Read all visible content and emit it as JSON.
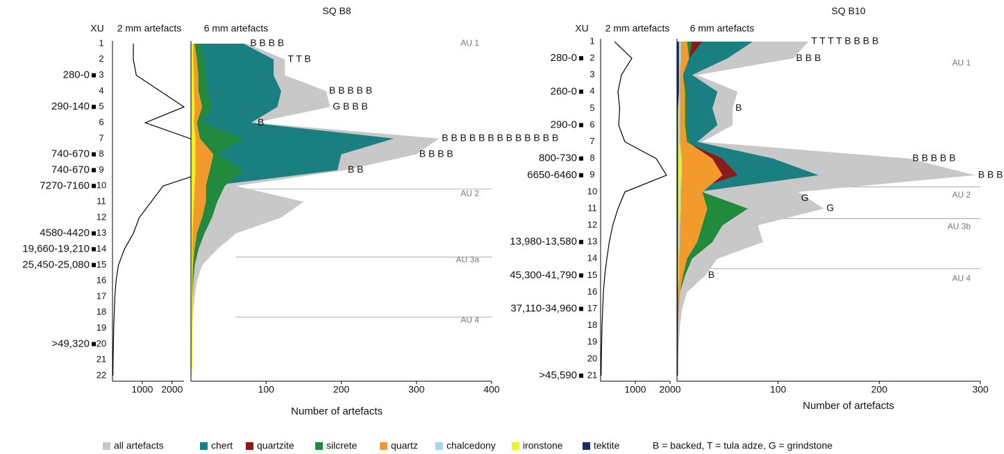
{
  "figure": {
    "legend_note": "B = backed, T = tula adze, G = grindstone",
    "materials": [
      {
        "key": "all",
        "label": "all artefacts",
        "color": "#c8c8c8"
      },
      {
        "key": "chert",
        "label": "chert",
        "color": "#1f6b65"
      },
      {
        "key": "quartzite",
        "label": "quartzite",
        "color": "#8b1a1a"
      },
      {
        "key": "silcrete",
        "label": "silcrete",
        "color": "#218a3c"
      },
      {
        "key": "quartz",
        "label": "quartz",
        "color": "#f39a2c"
      },
      {
        "key": "chalcedony",
        "label": "chalcedony",
        "color": "#a5d8ea"
      },
      {
        "key": "ironstone",
        "label": "ironstone",
        "color": "#eef21e"
      },
      {
        "key": "tektite",
        "label": "tektite",
        "color": "#1c2b6e"
      }
    ],
    "teal_color": "#1a7f80"
  },
  "chart_data": [
    {
      "type": "area",
      "title": "SQ B8",
      "y_axis_title": "XU",
      "fine_title": "2 mm artefacts",
      "coarse_title": "6 mm artefacts",
      "xlabel": "Number of artefacts",
      "xlim": [
        0,
        400
      ],
      "xticks": [
        100,
        200,
        300,
        400
      ],
      "fine_xlim": [
        0,
        2400
      ],
      "fine_xticks": [
        1000,
        2000
      ],
      "xu": [
        1,
        2,
        3,
        4,
        5,
        6,
        7,
        8,
        9,
        10,
        11,
        12,
        13,
        14,
        15,
        16,
        17,
        18,
        19,
        20,
        21,
        22
      ],
      "dates": [
        {
          "xu": 3,
          "label": "280-0"
        },
        {
          "xu": 5,
          "label": "290-140"
        },
        {
          "xu": 8,
          "label": "740-670"
        },
        {
          "xu": 9,
          "label": "740-670"
        },
        {
          "xu": 10,
          "label": "7270-7160"
        },
        {
          "xu": 13,
          "label": "4580-4420"
        },
        {
          "xu": 14,
          "label": "19,660-19,210"
        },
        {
          "xu": 15,
          "label": "25,450-25,080"
        },
        {
          "xu": 20,
          "label": ">49,320"
        }
      ],
      "fine": [
        700,
        700,
        800,
        1600,
        2400,
        1100,
        2600,
        3200,
        3300,
        1700,
        1300,
        900,
        700,
        400,
        200,
        120,
        80,
        60,
        40,
        30,
        20,
        15
      ],
      "series": {
        "all": [
          75,
          125,
          125,
          180,
          185,
          85,
          330,
          300,
          205,
          60,
          150,
          120,
          60,
          35,
          15,
          8,
          5,
          3,
          2,
          2,
          1,
          1
        ],
        "chert": [
          70,
          110,
          110,
          120,
          115,
          80,
          270,
          200,
          195,
          25,
          28,
          25,
          15,
          8,
          3,
          2,
          1,
          1,
          0,
          0,
          0,
          0
        ],
        "quartzite": [
          8,
          12,
          15,
          12,
          18,
          12,
          10,
          25,
          28,
          20,
          20,
          20,
          15,
          10,
          5,
          3,
          2,
          1,
          1,
          0,
          0,
          0
        ],
        "silcrete": [
          12,
          18,
          20,
          22,
          28,
          15,
          70,
          35,
          70,
          45,
          35,
          28,
          18,
          10,
          5,
          3,
          2,
          1,
          1,
          0,
          0,
          0
        ],
        "quartz": [
          5,
          8,
          10,
          10,
          15,
          8,
          12,
          30,
          25,
          20,
          20,
          15,
          8,
          5,
          3,
          2,
          1,
          1,
          1,
          0,
          0,
          0
        ],
        "chalcedony": [
          2,
          2,
          3,
          3,
          3,
          2,
          3,
          4,
          4,
          3,
          2,
          2,
          1,
          1,
          1,
          0,
          0,
          0,
          0,
          0,
          0,
          0
        ],
        "ironstone": [
          3,
          3,
          4,
          4,
          5,
          4,
          6,
          6,
          6,
          5,
          4,
          3,
          2,
          2,
          2,
          2,
          2,
          2,
          2,
          2,
          2,
          1
        ],
        "tektite": [
          0,
          0,
          0,
          0,
          0,
          0,
          0,
          0,
          0,
          0,
          0,
          0,
          0,
          0,
          0,
          0,
          0,
          0,
          0,
          0,
          0,
          0
        ]
      },
      "units": [
        {
          "label": "AU 1",
          "xu": 1
        },
        {
          "label": "AU 2",
          "xu": 10.5
        },
        {
          "label": "AU 3a",
          "xu": 14.7
        },
        {
          "label": "AU 4",
          "xu": 18.5
        }
      ],
      "boundaries": [
        10.2,
        14.5,
        18.3
      ],
      "annotations": [
        {
          "xu": 1,
          "text": "B B B B"
        },
        {
          "xu": 2,
          "text": "T T B"
        },
        {
          "xu": 4,
          "text": "B B B B B"
        },
        {
          "xu": 5,
          "text": "G B B B"
        },
        {
          "xu": 6,
          "text": "B"
        },
        {
          "xu": 7,
          "text": "B B B B B B B B B B B B B"
        },
        {
          "xu": 8,
          "text": "B B B B"
        },
        {
          "xu": 9,
          "text": "B B"
        }
      ]
    },
    {
      "type": "area",
      "title": "SQ B10",
      "y_axis_title": "XU",
      "fine_title": "2 mm artefacts",
      "coarse_title": "6 mm artefacts",
      "xlabel": "Number of artefacts",
      "xlim": [
        0,
        300
      ],
      "xticks": [
        100,
        200,
        300
      ],
      "fine_xlim": [
        0,
        2000
      ],
      "fine_xticks": [
        1000,
        2000
      ],
      "xu": [
        1,
        2,
        3,
        4,
        5,
        6,
        7,
        8,
        9,
        10,
        11,
        12,
        13,
        14,
        15,
        16,
        17,
        18,
        19,
        20,
        21
      ],
      "dates": [
        {
          "xu": 2,
          "label": "280-0"
        },
        {
          "xu": 4,
          "label": "260-0"
        },
        {
          "xu": 6,
          "label": "290-0"
        },
        {
          "xu": 8,
          "label": "800-730"
        },
        {
          "xu": 9,
          "label": "6650-6460"
        },
        {
          "xu": 13,
          "label": "13,980-13,580"
        },
        {
          "xu": 15,
          "label": "45,300-41,790"
        },
        {
          "xu": 17,
          "label": "37,110-34,960"
        },
        {
          "xu": 21,
          "label": ">45,590"
        }
      ],
      "fine": [
        400,
        900,
        600,
        500,
        550,
        520,
        700,
        1600,
        1900,
        700,
        500,
        350,
        250,
        180,
        120,
        80,
        60,
        40,
        30,
        20,
        15
      ],
      "series": {
        "all": [
          130,
          115,
          20,
          60,
          55,
          55,
          25,
          230,
          295,
          120,
          145,
          80,
          85,
          40,
          28,
          10,
          5,
          3,
          2,
          1,
          1
        ],
        "chert": [
          75,
          50,
          15,
          40,
          35,
          40,
          20,
          95,
          140,
          20,
          20,
          15,
          20,
          10,
          5,
          3,
          1,
          1,
          0,
          0,
          0
        ],
        "quartzite": [
          25,
          12,
          5,
          8,
          8,
          8,
          8,
          45,
          60,
          10,
          10,
          8,
          8,
          5,
          3,
          1,
          1,
          0,
          0,
          0,
          0
        ],
        "silcrete": [
          15,
          12,
          6,
          10,
          10,
          10,
          12,
          30,
          30,
          25,
          70,
          45,
          35,
          15,
          8,
          3,
          1,
          1,
          0,
          0,
          0
        ],
        "quartz": [
          10,
          12,
          6,
          8,
          8,
          8,
          10,
          35,
          45,
          25,
          30,
          25,
          20,
          10,
          6,
          3,
          2,
          1,
          1,
          0,
          0
        ],
        "chalcedony": [
          4,
          4,
          3,
          3,
          3,
          3,
          3,
          5,
          5,
          4,
          4,
          3,
          3,
          2,
          2,
          1,
          1,
          1,
          1,
          1,
          1
        ],
        "ironstone": [
          2,
          2,
          2,
          2,
          2,
          2,
          2,
          4,
          4,
          3,
          3,
          2,
          2,
          2,
          2,
          1,
          1,
          1,
          1,
          1,
          1
        ],
        "tektite": [
          2,
          2,
          2,
          2,
          1,
          1,
          1,
          1,
          1,
          1,
          1,
          1,
          1,
          1,
          1,
          1,
          1,
          1,
          1,
          1,
          1
        ]
      },
      "units": [
        {
          "label": "AU 1",
          "xu": 2.3
        },
        {
          "label": "AU 2",
          "xu": 10.2
        },
        {
          "label": "AU 3b",
          "xu": 12.1
        },
        {
          "label": "AU 4",
          "xu": 15.2
        }
      ],
      "boundaries": [
        9.7,
        11.6,
        14.6
      ],
      "annotations": [
        {
          "xu": 1,
          "text": "T T T T B B B B"
        },
        {
          "xu": 2,
          "text": "B B B"
        },
        {
          "xu": 5,
          "text": "B"
        },
        {
          "xu": 8,
          "text": "B B B B B"
        },
        {
          "xu": 9,
          "text": "B B B B B"
        },
        {
          "xu": 10.4,
          "text": "G"
        },
        {
          "xu": 11,
          "text": "G"
        },
        {
          "xu": 15,
          "text": "B"
        }
      ]
    }
  ]
}
